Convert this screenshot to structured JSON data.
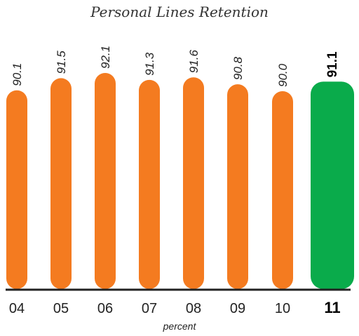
{
  "chart_data": {
    "type": "bar",
    "title": "Personal Lines Retention",
    "categories": [
      "04",
      "05",
      "06",
      "07",
      "08",
      "09",
      "10",
      "11"
    ],
    "values": [
      90.1,
      91.5,
      92.1,
      91.3,
      91.6,
      90.8,
      90.0,
      91.1
    ],
    "value_labels": [
      "90.1",
      "91.5",
      "92.1",
      "91.3",
      "91.6",
      "90.8",
      "90.0",
      "91.1"
    ],
    "highlight_index": 7,
    "xlabel": "percent",
    "ylabel": "",
    "ylim": [
      0,
      100
    ],
    "grid": false,
    "colors": {
      "bar": "#f47b20",
      "highlight_bar": "#0aab4b",
      "baseline": "#222222"
    }
  }
}
